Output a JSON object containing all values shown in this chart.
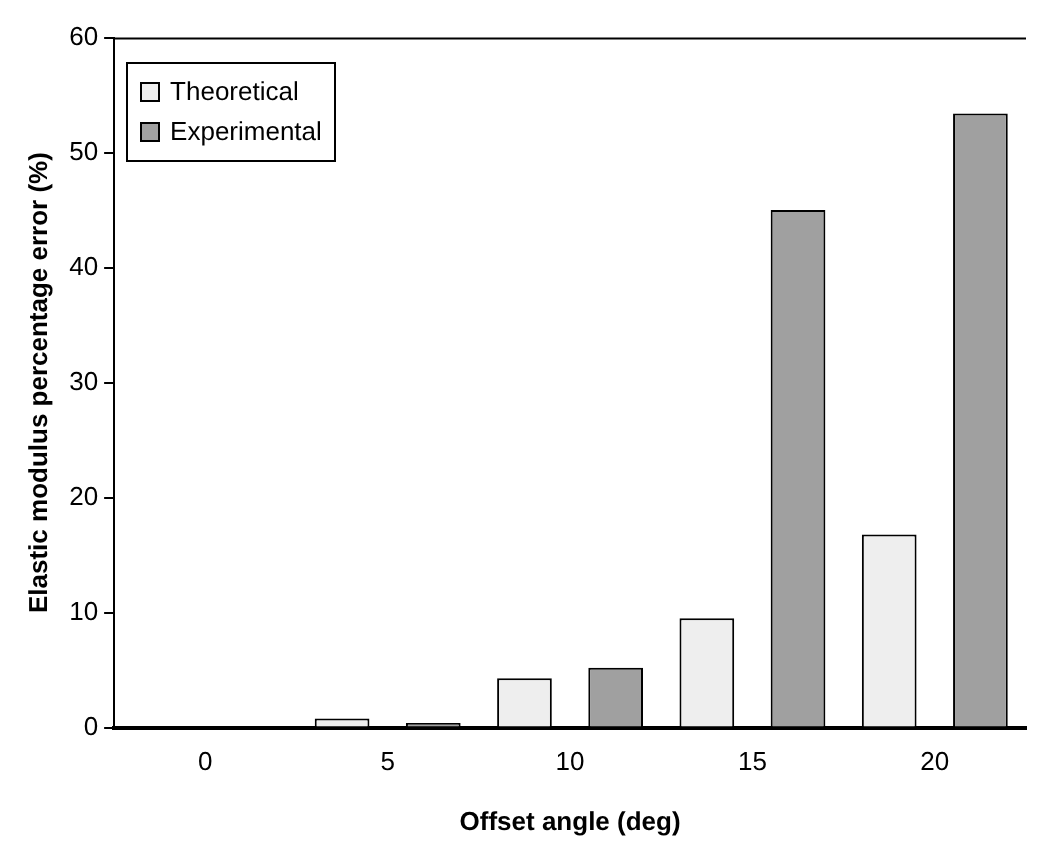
{
  "chart_data": {
    "type": "bar",
    "xlabel": "Offset angle (deg)",
    "ylabel": "Elastic modulus percentage error (%)",
    "categories": [
      "0",
      "5",
      "10",
      "15",
      "20"
    ],
    "series": [
      {
        "name": "Theoretical",
        "color": "#eeeeee",
        "values": [
          0,
          0.8,
          4.3,
          9.5,
          16.8
        ]
      },
      {
        "name": "Experimental",
        "color": "#a0a0a0",
        "values": [
          0,
          0.4,
          5.2,
          45,
          53.4
        ]
      }
    ],
    "ylim": [
      0,
      60
    ],
    "yticks": [
      0,
      10,
      20,
      30,
      40,
      50,
      60
    ],
    "grid": false,
    "legend": "top left"
  }
}
